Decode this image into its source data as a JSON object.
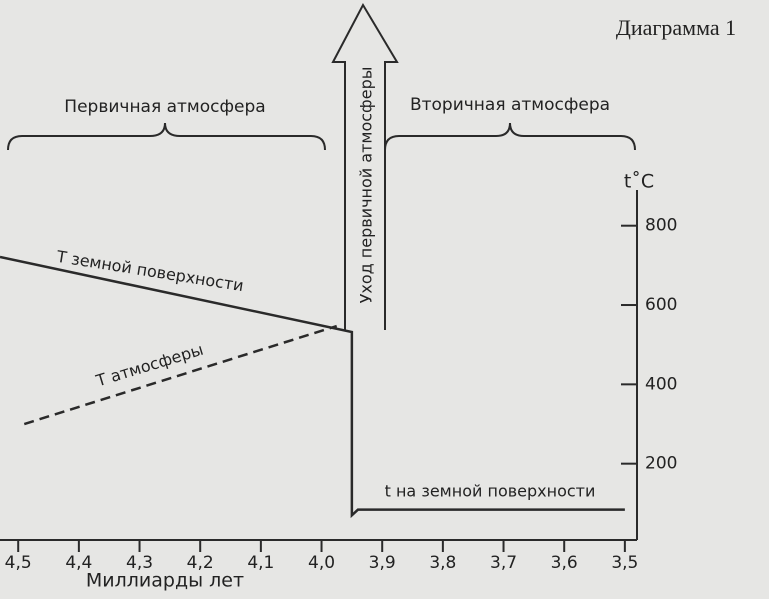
{
  "chart_data": {
    "type": "line",
    "title": "Диаграмма 1",
    "x_label": "Миллиарды  лет",
    "y_label": "t˚C",
    "annotations": [
      "Первичная атмосфера",
      "Вторичная атмосфера",
      "Уход первичной атмосферы",
      "t на земной поверхности"
    ],
    "series": [
      {
        "name": "T земной поверхности",
        "color": "#2a2a2a",
        "style": "solid",
        "x": [
          4.53,
          3.95,
          3.95,
          3.94,
          3.5
        ],
        "values": [
          721,
          532,
          70,
          84,
          84
        ]
      },
      {
        "name": "T атмосферы",
        "color": "#2a2a2a",
        "style": "dashed",
        "x": [
          4.49,
          3.975
        ],
        "values": [
          300,
          547
        ]
      }
    ],
    "xlim": [
      4.53,
      3.48
    ],
    "xticks": [
      {
        "value": 4.5,
        "label": "4,5"
      },
      {
        "value": 4.4,
        "label": "4,4"
      },
      {
        "value": 4.3,
        "label": "4,3"
      },
      {
        "value": 4.2,
        "label": "4,2"
      },
      {
        "value": 4.1,
        "label": "4,1"
      },
      {
        "value": 4.0,
        "label": "4,0"
      },
      {
        "value": 3.9,
        "label": "3,9"
      },
      {
        "value": 3.8,
        "label": "3,8"
      },
      {
        "value": 3.7,
        "label": "3,7"
      },
      {
        "value": 3.6,
        "label": "3,6"
      },
      {
        "value": 3.5,
        "label": "3,5"
      }
    ],
    "ylim": [
      0,
      890
    ],
    "yticks": [
      200,
      400,
      600,
      800
    ],
    "y_axis_side": "right",
    "grid": false
  }
}
